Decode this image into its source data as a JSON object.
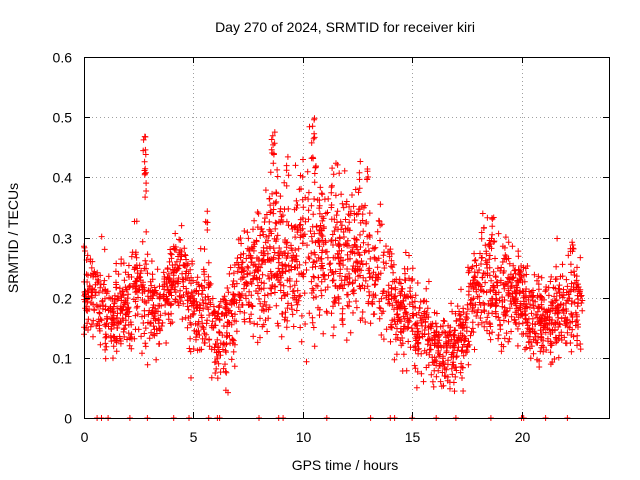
{
  "chart_data": {
    "type": "scatter",
    "title": "Day 270 of 2024, SRMTID for receiver kiri",
    "xlabel": "GPS time / hours",
    "ylabel": "SRMTID / TECUs",
    "xlim": [
      0,
      24
    ],
    "ylim": [
      0,
      0.6
    ],
    "xticks": [
      0,
      5,
      10,
      15,
      20
    ],
    "yticks": [
      0,
      0.1,
      0.2,
      0.3,
      0.4,
      0.5,
      0.6
    ],
    "xtick_labels": [
      "0",
      "5",
      "10",
      "15",
      "20"
    ],
    "ytick_labels": [
      "0",
      "0.1",
      "0.2",
      "0.3",
      "0.4",
      "0.5",
      "0.6"
    ],
    "grid": true,
    "marker": "+",
    "series_color": "#ff0000",
    "series": [
      {
        "name": "SRMTID",
        "trend_x": [
          0.0,
          0.5,
          1.0,
          1.5,
          2.0,
          2.5,
          2.8,
          3.0,
          3.5,
          4.0,
          4.5,
          5.0,
          5.5,
          6.0,
          6.5,
          7.0,
          7.5,
          8.0,
          8.5,
          9.0,
          9.5,
          10.0,
          10.5,
          11.0,
          11.5,
          12.0,
          12.5,
          13.0,
          13.5,
          14.0,
          14.5,
          15.0,
          15.5,
          16.0,
          16.5,
          17.0,
          17.5,
          18.0,
          18.5,
          19.0,
          19.5,
          20.0,
          20.5,
          21.0,
          21.5,
          22.0,
          22.5,
          22.8
        ],
        "trend_y": [
          0.21,
          0.2,
          0.18,
          0.17,
          0.2,
          0.22,
          0.2,
          0.18,
          0.17,
          0.24,
          0.23,
          0.17,
          0.2,
          0.13,
          0.14,
          0.21,
          0.22,
          0.25,
          0.26,
          0.27,
          0.26,
          0.28,
          0.26,
          0.28,
          0.27,
          0.26,
          0.27,
          0.25,
          0.23,
          0.2,
          0.18,
          0.17,
          0.14,
          0.12,
          0.11,
          0.12,
          0.15,
          0.22,
          0.23,
          0.2,
          0.21,
          0.2,
          0.17,
          0.16,
          0.17,
          0.18,
          0.2,
          0.22
        ],
        "spread": [
          0.03,
          0.04,
          0.04,
          0.03,
          0.04,
          0.05,
          0.06,
          0.04,
          0.03,
          0.03,
          0.04,
          0.05,
          0.04,
          0.04,
          0.04,
          0.04,
          0.05,
          0.06,
          0.07,
          0.07,
          0.07,
          0.08,
          0.08,
          0.07,
          0.07,
          0.07,
          0.06,
          0.06,
          0.06,
          0.05,
          0.05,
          0.04,
          0.04,
          0.03,
          0.03,
          0.03,
          0.04,
          0.05,
          0.05,
          0.05,
          0.05,
          0.04,
          0.04,
          0.04,
          0.04,
          0.05,
          0.05,
          0.04
        ],
        "spikes": [
          [
            2.75,
            0.48
          ],
          [
            2.8,
            0.45
          ],
          [
            2.82,
            0.42
          ],
          [
            10.5,
            0.5
          ],
          [
            10.45,
            0.47
          ],
          [
            10.55,
            0.44
          ],
          [
            8.7,
            0.48
          ],
          [
            8.6,
            0.47
          ],
          [
            9.3,
            0.44
          ],
          [
            12.6,
            0.43
          ],
          [
            13.0,
            0.44
          ],
          [
            22.3,
            0.33
          ],
          [
            18.7,
            0.34
          ],
          [
            5.6,
            0.36
          ]
        ],
        "zero_x": [
          0.6,
          0.8,
          1.1,
          2.1,
          2.9,
          4.1,
          4.8,
          5.7,
          6.1,
          6.2,
          8.0,
          8.9,
          9.1,
          11.1,
          13.1,
          14.0,
          14.2,
          15.0,
          16.1,
          17.0,
          18.6,
          20.0,
          20.1,
          21.1,
          22.1
        ]
      }
    ]
  }
}
